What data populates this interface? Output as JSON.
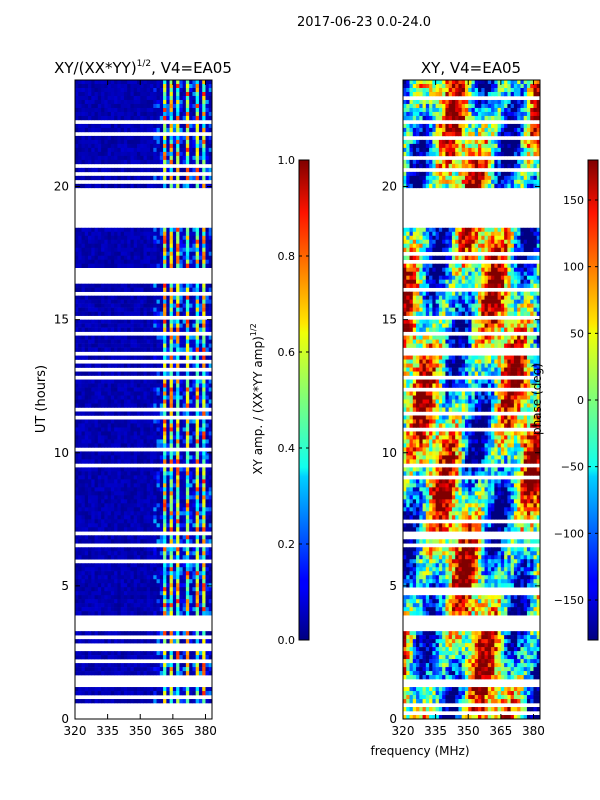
{
  "figure": {
    "suptitle": "2017-06-23 0.0-24.0",
    "xlabel": "frequency (MHz)"
  },
  "chart_data": [
    {
      "type": "heatmap",
      "title": "XY/(XX*YY)",
      "title_exponent": "1/2",
      "title_suffix": ", V4=EA05",
      "xlabel": "",
      "ylabel": "UT (hours)",
      "xlim": [
        320,
        383
      ],
      "ylim": [
        0,
        24
      ],
      "xticks": [
        320,
        335,
        350,
        365,
        380
      ],
      "yticks": [
        0,
        5,
        10,
        15,
        20
      ],
      "colorbar": {
        "label": "XY amp. / (XX*YY amp)",
        "label_exponent": "1/2",
        "range": [
          0.0,
          1.0
        ],
        "ticks": [
          "0.0",
          "0.2",
          "0.4",
          "0.6",
          "0.8",
          "1.0"
        ],
        "tick_values": [
          0.0,
          0.2,
          0.4,
          0.6,
          0.8,
          1.0
        ],
        "colormap": "jet"
      },
      "blank_time_ranges": [
        [
          3.3,
          3.9
        ],
        [
          18.4,
          19.9
        ],
        [
          16.3,
          17.0
        ]
      ],
      "active_channels_mhz": [
        [
          360,
          362
        ],
        [
          363,
          365
        ],
        [
          366,
          368
        ],
        [
          371,
          373
        ],
        [
          375,
          377
        ],
        [
          378,
          380
        ]
      ]
    },
    {
      "type": "heatmap",
      "title": "XY, V4=EA05",
      "xlabel": "",
      "ylabel": "",
      "xlim": [
        320,
        383
      ],
      "ylim": [
        0,
        24
      ],
      "xticks": [
        320,
        335,
        350,
        365,
        380
      ],
      "yticks": [
        0,
        5,
        10,
        15,
        20
      ],
      "colorbar": {
        "label": "phase (deg)",
        "range": [
          -180,
          180
        ],
        "ticks": [
          "−150",
          "−100",
          "−50",
          "0",
          "50",
          "100",
          "150"
        ],
        "tick_values": [
          -150,
          -100,
          -50,
          0,
          50,
          100,
          150
        ],
        "colormap": "jet"
      },
      "blank_time_ranges": [
        [
          3.3,
          3.9
        ],
        [
          18.4,
          19.9
        ]
      ]
    }
  ]
}
